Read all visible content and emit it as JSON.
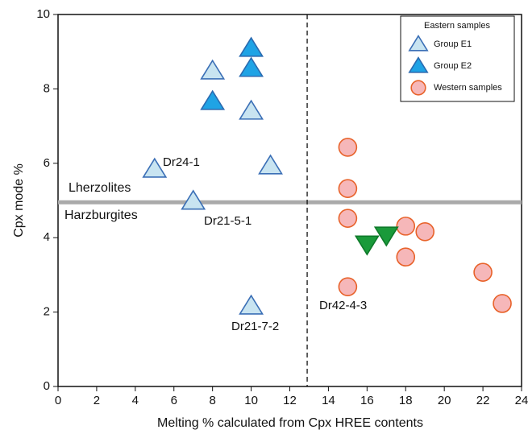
{
  "chart_data": {
    "type": "scatter",
    "xlabel": "Melting % calculated from Cpx HREE contents",
    "ylabel": "Cpx mode %",
    "xlim": [
      0,
      24
    ],
    "xticks": [
      0,
      2,
      4,
      6,
      8,
      10,
      12,
      14,
      16,
      18,
      20,
      22,
      24
    ],
    "ylim": [
      0,
      10
    ],
    "yticks": [
      0,
      2,
      4,
      6,
      8,
      10
    ],
    "legend_title": "Eastern samples",
    "legend": "upper right",
    "hline": 4.95,
    "vline": 12.9,
    "series": [
      {
        "name": "Group E1",
        "marker": "triangle",
        "color": "#c8e4f1",
        "edge": "#3b6fb6",
        "x": [
          8,
          10,
          5,
          11,
          7,
          10
        ],
        "values": [
          8.48,
          7.4,
          5.84,
          5.93,
          4.98,
          2.16
        ]
      },
      {
        "name": "Group E2",
        "marker": "triangle",
        "color": "#1fa3e5",
        "edge": "#2a6ab0",
        "x": [
          10,
          10,
          8
        ],
        "values": [
          9.09,
          8.55,
          7.66
        ]
      },
      {
        "name": "Western samples",
        "marker": "circle",
        "color": "#f6b7b9",
        "edge": "#e8622a",
        "x": [
          15,
          15,
          15,
          15,
          18,
          18,
          19,
          22,
          23
        ],
        "values": [
          6.43,
          5.32,
          4.52,
          2.68,
          4.31,
          3.48,
          4.16,
          3.07,
          2.23
        ]
      },
      {
        "marker": "triangle-down",
        "color": "#1a9a3a",
        "edge": "#0f7a2a",
        "x": [
          16,
          17
        ],
        "values": [
          3.83,
          4.07
        ]
      }
    ],
    "annotations": [
      "Dr24-1",
      "Lherzolites",
      "Harzburgites",
      "Dr21-5-1",
      "Dr21-7-2",
      "Dr42-4-3"
    ]
  }
}
